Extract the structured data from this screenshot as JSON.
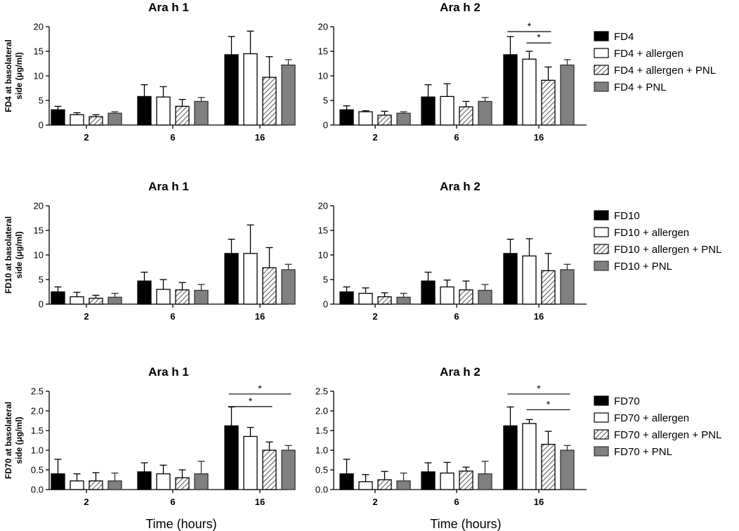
{
  "chart_data": [
    {
      "type": "bar",
      "id": "fd4-arah1",
      "title": "Ara h 1",
      "ylabel": "FD4 at basolateral side (μg/ml)",
      "xlabel": "",
      "categories": [
        "2",
        "6",
        "16"
      ],
      "ylim": [
        0,
        20
      ],
      "yticks": [
        0,
        5,
        10,
        15,
        20
      ],
      "yticklabels": [
        "0",
        "5",
        "10",
        "15",
        "20"
      ],
      "series": [
        {
          "name": "FD4",
          "values": [
            3.1,
            5.8,
            14.3
          ],
          "errors": [
            0.7,
            2.4,
            3.7
          ]
        },
        {
          "name": "FD4 + allergen",
          "values": [
            2.1,
            5.7,
            14.5
          ],
          "errors": [
            0.4,
            2.1,
            4.6
          ]
        },
        {
          "name": "FD4 + allergen + PNL",
          "values": [
            1.7,
            3.8,
            9.7
          ],
          "errors": [
            0.4,
            1.4,
            4.2
          ]
        },
        {
          "name": "FD4 + PNL",
          "values": [
            2.4,
            4.8,
            12.2
          ],
          "errors": [
            0.3,
            0.8,
            1.1
          ]
        }
      ],
      "significance": []
    },
    {
      "type": "bar",
      "id": "fd4-arah2",
      "title": "Ara h 2",
      "ylabel": "",
      "xlabel": "",
      "categories": [
        "2",
        "6",
        "16"
      ],
      "ylim": [
        0,
        20
      ],
      "yticks": [
        0,
        5,
        10,
        15,
        20
      ],
      "yticklabels": [
        "0",
        "5",
        "10",
        "15",
        "20"
      ],
      "series": [
        {
          "name": "FD4",
          "values": [
            3.1,
            5.7,
            14.3
          ],
          "errors": [
            0.8,
            2.5,
            3.7
          ]
        },
        {
          "name": "FD4 + allergen",
          "values": [
            2.7,
            5.8,
            13.4
          ],
          "errors": [
            0.2,
            2.6,
            1.6
          ]
        },
        {
          "name": "FD4 + allergen + PNL",
          "values": [
            2.0,
            3.7,
            9.1
          ],
          "errors": [
            0.8,
            1.1,
            2.7
          ]
        },
        {
          "name": "FD4 + PNL",
          "values": [
            2.4,
            4.8,
            12.2
          ],
          "errors": [
            0.3,
            0.8,
            1.1
          ]
        }
      ],
      "significance": [
        {
          "category": 2,
          "from": 0,
          "to": 2,
          "label": "*",
          "y": 19.0
        },
        {
          "category": 2,
          "from": 1,
          "to": 2,
          "label": "*",
          "y": 16.7
        }
      ]
    },
    {
      "type": "bar",
      "id": "fd10-arah1",
      "title": "Ara h 1",
      "ylabel": "FD10 at basolateral side (μg/ml)",
      "xlabel": "",
      "categories": [
        "2",
        "6",
        "16"
      ],
      "ylim": [
        0,
        20
      ],
      "yticks": [
        0,
        5,
        10,
        15,
        20
      ],
      "yticklabels": [
        "0",
        "5",
        "10",
        "15",
        "20"
      ],
      "series": [
        {
          "name": "FD10",
          "values": [
            2.5,
            4.7,
            10.3
          ],
          "errors": [
            1.0,
            1.8,
            2.9
          ]
        },
        {
          "name": "FD10 + allergen",
          "values": [
            1.5,
            3.0,
            10.3
          ],
          "errors": [
            0.9,
            2.0,
            5.8
          ]
        },
        {
          "name": "FD10 + allergen + PNL",
          "values": [
            1.2,
            2.9,
            7.4
          ],
          "errors": [
            0.6,
            1.5,
            4.1
          ]
        },
        {
          "name": "FD10 + PNL",
          "values": [
            1.4,
            2.8,
            7.0
          ],
          "errors": [
            0.8,
            1.2,
            1.1
          ]
        }
      ],
      "significance": []
    },
    {
      "type": "bar",
      "id": "fd10-arah2",
      "title": "Ara h 2",
      "ylabel": "",
      "xlabel": "",
      "categories": [
        "2",
        "6",
        "16"
      ],
      "ylim": [
        0,
        20
      ],
      "yticks": [
        0,
        5,
        10,
        15,
        20
      ],
      "yticklabels": [
        "0",
        "5",
        "10",
        "15",
        "20"
      ],
      "series": [
        {
          "name": "FD10",
          "values": [
            2.5,
            4.7,
            10.3
          ],
          "errors": [
            1.0,
            1.8,
            2.9
          ]
        },
        {
          "name": "FD10 + allergen",
          "values": [
            2.2,
            3.5,
            9.8
          ],
          "errors": [
            1.1,
            1.4,
            3.5
          ]
        },
        {
          "name": "FD10 + allergen + PNL",
          "values": [
            1.5,
            2.9,
            6.8
          ],
          "errors": [
            0.8,
            1.8,
            3.5
          ]
        },
        {
          "name": "FD10 + PNL",
          "values": [
            1.4,
            2.8,
            7.0
          ],
          "errors": [
            0.8,
            1.2,
            1.1
          ]
        }
      ],
      "significance": []
    },
    {
      "type": "bar",
      "id": "fd70-arah1",
      "title": "Ara h 1",
      "ylabel": "FD70 at basolateral side (μg/ml)",
      "xlabel": "Time (hours)",
      "categories": [
        "2",
        "6",
        "16"
      ],
      "ylim": [
        0,
        2.5
      ],
      "yticks": [
        0,
        0.5,
        1,
        1.5,
        2,
        2.5
      ],
      "yticklabels": [
        "0.0",
        "0.5",
        "1.0",
        "1.5",
        "2.0",
        "2.5"
      ],
      "series": [
        {
          "name": "FD70",
          "values": [
            0.4,
            0.45,
            1.62
          ],
          "errors": [
            0.37,
            0.23,
            0.48
          ]
        },
        {
          "name": "FD70 + allergen",
          "values": [
            0.22,
            0.4,
            1.35
          ],
          "errors": [
            0.18,
            0.22,
            0.23
          ]
        },
        {
          "name": "FD70 + allergen + PNL",
          "values": [
            0.22,
            0.3,
            1.0
          ],
          "errors": [
            0.21,
            0.2,
            0.21
          ]
        },
        {
          "name": "FD70 + PNL",
          "values": [
            0.22,
            0.4,
            1.0
          ],
          "errors": [
            0.2,
            0.32,
            0.12
          ]
        }
      ],
      "significance": [
        {
          "category": 2,
          "from": 0,
          "to": 3,
          "label": "*",
          "y": 2.43
        },
        {
          "category": 2,
          "from": 0,
          "to": 2,
          "label": "*",
          "y": 2.11
        }
      ]
    },
    {
      "type": "bar",
      "id": "fd70-arah2",
      "title": "Ara h 2",
      "ylabel": "",
      "xlabel": "Time (hours)",
      "categories": [
        "2",
        "6",
        "16"
      ],
      "ylim": [
        0,
        2.5
      ],
      "yticks": [
        0,
        0.5,
        1,
        1.5,
        2,
        2.5
      ],
      "yticklabels": [
        "0.0",
        "0.5",
        "1.0",
        "1.5",
        "2.0",
        "2.5"
      ],
      "series": [
        {
          "name": "FD70",
          "values": [
            0.4,
            0.45,
            1.62
          ],
          "errors": [
            0.37,
            0.23,
            0.48
          ]
        },
        {
          "name": "FD70 + allergen",
          "values": [
            0.2,
            0.42,
            1.68
          ],
          "errors": [
            0.18,
            0.27,
            0.1
          ]
        },
        {
          "name": "FD70 + allergen + PNL",
          "values": [
            0.25,
            0.47,
            1.15
          ],
          "errors": [
            0.21,
            0.1,
            0.33
          ]
        },
        {
          "name": "FD70 + PNL",
          "values": [
            0.22,
            0.4,
            1.0
          ],
          "errors": [
            0.2,
            0.32,
            0.12
          ]
        }
      ],
      "significance": [
        {
          "category": 2,
          "from": 0,
          "to": 3,
          "label": "*",
          "y": 2.43
        },
        {
          "category": 2,
          "from": 1,
          "to": 3,
          "label": "*",
          "y": 2.03
        }
      ]
    }
  ],
  "legends": [
    {
      "items": [
        "FD4",
        "FD4 + allergen",
        "FD4 + allergen + PNL",
        "FD4 + PNL"
      ]
    },
    {
      "items": [
        "FD10",
        "FD10 + allergen",
        "FD10 + allergen + PNL",
        "FD10 + PNL"
      ]
    },
    {
      "items": [
        "FD70",
        "FD70 + allergen",
        "FD70 + allergen + PNL",
        "FD70 + PNL"
      ]
    }
  ],
  "series_styles": [
    {
      "fill": "#000000",
      "pattern": "solid"
    },
    {
      "fill": "#ffffff",
      "pattern": "solid"
    },
    {
      "fill": "#ffffff",
      "pattern": "hatch"
    },
    {
      "fill": "#808080",
      "pattern": "solid"
    }
  ]
}
